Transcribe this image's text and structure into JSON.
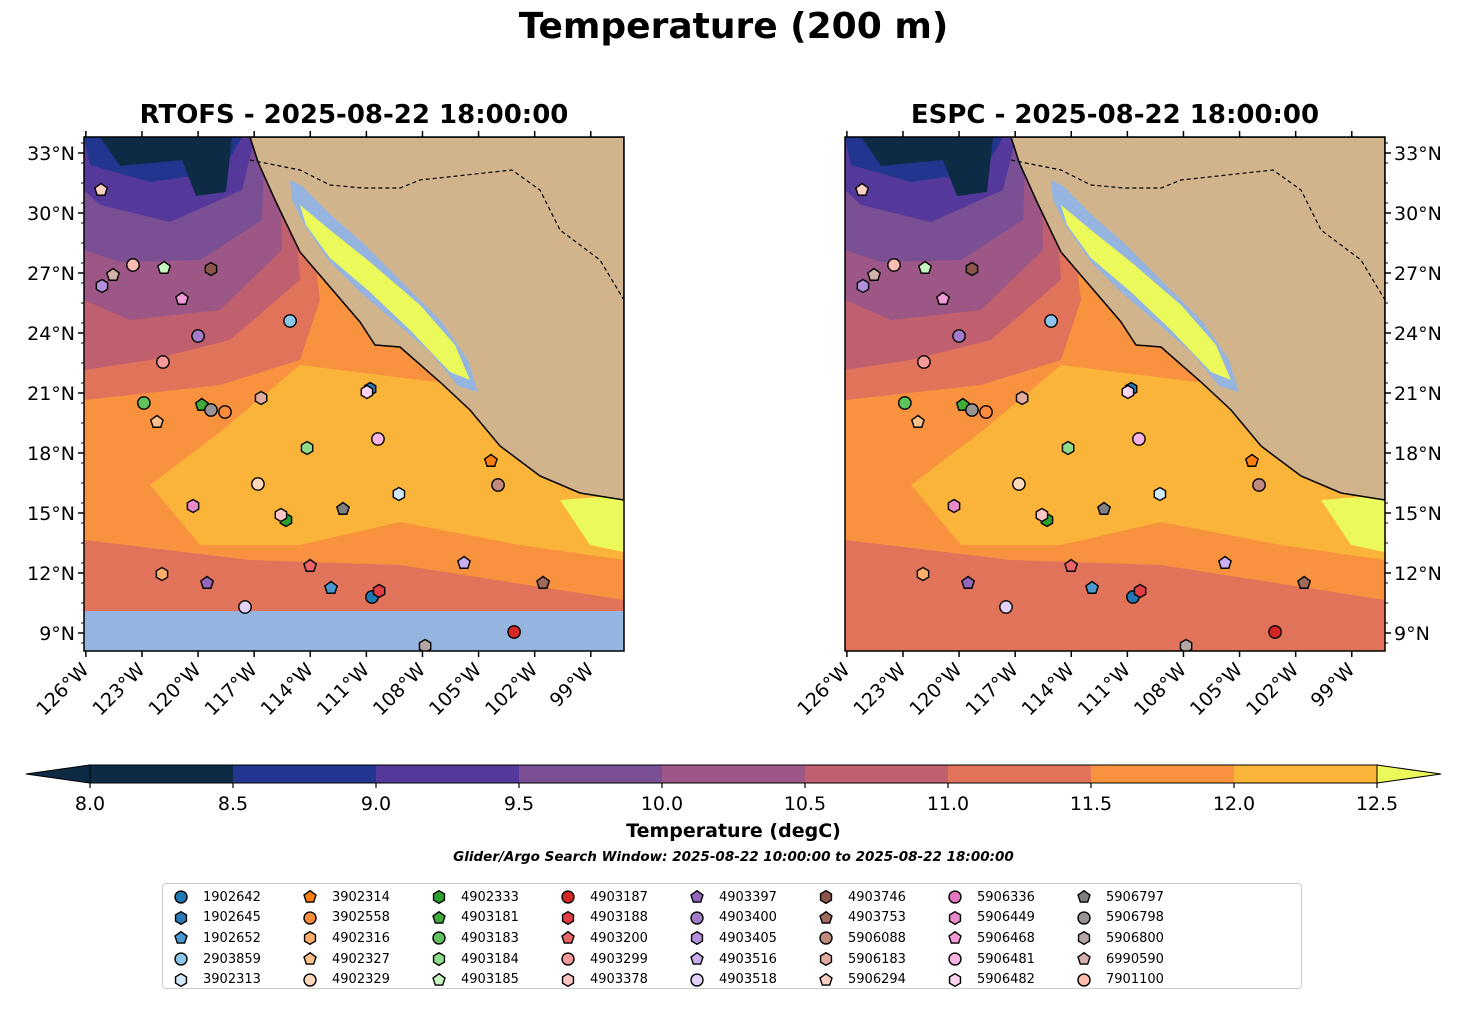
{
  "title": "Temperature (200 m)",
  "chart_data": {
    "type": "map-contour",
    "panels": [
      {
        "title": "RTOFS - 2025-08-22 18:00:00",
        "model": "RTOFS",
        "no_data_south_of_lat": 10.1
      },
      {
        "title": "ESPC - 2025-08-22 18:00:00",
        "model": "ESPC"
      }
    ],
    "lon_range": [
      -126.1,
      -97.0
    ],
    "lat_range": [
      8.1,
      33.8
    ],
    "lon_ticks": [
      -126,
      -123,
      -120,
      -117,
      -114,
      -111,
      -108,
      -105,
      -102,
      -99
    ],
    "lon_tick_labels": [
      "126°W",
      "123°W",
      "120°W",
      "117°W",
      "114°W",
      "111°W",
      "108°W",
      "105°W",
      "102°W",
      "99°W"
    ],
    "lat_ticks": [
      9,
      12,
      15,
      18,
      21,
      24,
      27,
      30,
      33
    ],
    "lat_tick_labels": [
      "9°N",
      "12°N",
      "15°N",
      "18°N",
      "21°N",
      "24°N",
      "27°N",
      "30°N",
      "33°N"
    ],
    "colorbar": {
      "label": "Temperature (degC)",
      "levels": [
        8.0,
        8.5,
        9.0,
        9.5,
        10.0,
        10.5,
        11.0,
        11.5,
        12.0,
        12.5
      ],
      "tick_labels": [
        "8.0",
        "8.5",
        "9.0",
        "9.5",
        "10.0",
        "10.5",
        "11.0",
        "11.5",
        "12.0",
        "12.5"
      ],
      "colors": [
        "#0d2b45",
        "#22368f",
        "#55399a",
        "#7a4f94",
        "#9c5787",
        "#c0606f",
        "#e2735b",
        "#f8923f",
        "#fbb43a"
      ],
      "under_color": "#0d2b45",
      "over_color": "#ecf95a",
      "extend": "both"
    },
    "land_color": "#d2b48c",
    "missing_color": "#95b4e0",
    "search_window": "Glider/Argo Search Window: 2025-08-22 10:00:00 to 2025-08-22 18:00:00",
    "floats": [
      {
        "id": "1902642",
        "shape": "circle",
        "color": "#1f77b4"
      },
      {
        "id": "1902645",
        "shape": "hexagon",
        "color": "#2a7ab9"
      },
      {
        "id": "1902652",
        "shape": "pentagon",
        "color": "#4a98cf"
      },
      {
        "id": "2903859",
        "shape": "circle",
        "color": "#8cc4ea"
      },
      {
        "id": "3902313",
        "shape": "hexagon",
        "color": "#d0e8fa"
      },
      {
        "id": "3902314",
        "shape": "pentagon",
        "color": "#ff7f0e"
      },
      {
        "id": "3902558",
        "shape": "circle",
        "color": "#fd8d3c"
      },
      {
        "id": "4902316",
        "shape": "hexagon",
        "color": "#fdae6b"
      },
      {
        "id": "4902327",
        "shape": "pentagon",
        "color": "#fdc28c"
      },
      {
        "id": "4902329",
        "shape": "circle",
        "color": "#fdd9b9"
      },
      {
        "id": "4902333",
        "shape": "hexagon",
        "color": "#2ca02c"
      },
      {
        "id": "4903181",
        "shape": "pentagon",
        "color": "#41ab3c"
      },
      {
        "id": "4903183",
        "shape": "circle",
        "color": "#5fc35b"
      },
      {
        "id": "4903184",
        "shape": "hexagon",
        "color": "#8fdc8a"
      },
      {
        "id": "4903185",
        "shape": "pentagon",
        "color": "#c7f5c0"
      },
      {
        "id": "4903187",
        "shape": "circle",
        "color": "#d62728"
      },
      {
        "id": "4903188",
        "shape": "hexagon",
        "color": "#e04043"
      },
      {
        "id": "4903200",
        "shape": "pentagon",
        "color": "#eb6566"
      },
      {
        "id": "4903299",
        "shape": "circle",
        "color": "#f49a9a"
      },
      {
        "id": "4903378",
        "shape": "hexagon",
        "color": "#ffc4c4"
      },
      {
        "id": "4903397",
        "shape": "pentagon",
        "color": "#9467bd"
      },
      {
        "id": "4903400",
        "shape": "circle",
        "color": "#a07ccb"
      },
      {
        "id": "4903405",
        "shape": "hexagon",
        "color": "#b290dc"
      },
      {
        "id": "4903516",
        "shape": "pentagon",
        "color": "#c9aef0"
      },
      {
        "id": "4903518",
        "shape": "circle",
        "color": "#e3d2fb"
      },
      {
        "id": "4903746",
        "shape": "hexagon",
        "color": "#8c564b"
      },
      {
        "id": "4903753",
        "shape": "pentagon",
        "color": "#a06a5d"
      },
      {
        "id": "5906088",
        "shape": "circle",
        "color": "#c08a7e"
      },
      {
        "id": "5906183",
        "shape": "hexagon",
        "color": "#e0ab9e"
      },
      {
        "id": "5906294",
        "shape": "pentagon",
        "color": "#fdd0c3"
      },
      {
        "id": "5906336",
        "shape": "circle",
        "color": "#e377c2"
      },
      {
        "id": "5906449",
        "shape": "hexagon",
        "color": "#e98acb"
      },
      {
        "id": "5906468",
        "shape": "pentagon",
        "color": "#f29bd6"
      },
      {
        "id": "5906481",
        "shape": "circle",
        "color": "#f7b4e2"
      },
      {
        "id": "5906482",
        "shape": "hexagon",
        "color": "#fcd4f0"
      },
      {
        "id": "5906797",
        "shape": "pentagon",
        "color": "#7f7f7f"
      },
      {
        "id": "5906798",
        "shape": "circle",
        "color": "#999393"
      },
      {
        "id": "5906800",
        "shape": "hexagon",
        "color": "#b5a5a5"
      },
      {
        "id": "6990590",
        "shape": "pentagon",
        "color": "#d4b0ab"
      },
      {
        "id": "7901100",
        "shape": "circle",
        "color": "#fcbcb0"
      }
    ],
    "positions": [
      {
        "id": "5906294",
        "lon": -125.19,
        "lat": 31.15
      },
      {
        "id": "6990590",
        "lon": -124.55,
        "lat": 26.9
      },
      {
        "id": "4903405",
        "lon": -125.14,
        "lat": 26.35
      },
      {
        "id": "7901100",
        "lon": -123.48,
        "lat": 27.4
      },
      {
        "id": "4903185",
        "lon": -121.82,
        "lat": 27.25
      },
      {
        "id": "4903746",
        "lon": -119.31,
        "lat": 27.2
      },
      {
        "id": "5906468",
        "lon": -120.86,
        "lat": 25.7
      },
      {
        "id": "4903400",
        "lon": -120.0,
        "lat": 23.85
      },
      {
        "id": "2903859",
        "lon": -115.08,
        "lat": 24.6
      },
      {
        "id": "4903299",
        "lon": -121.88,
        "lat": 22.55
      },
      {
        "id": "4903183",
        "lon": -122.9,
        "lat": 20.5
      },
      {
        "id": "4903181",
        "lon": -119.8,
        "lat": 20.4
      },
      {
        "id": "5906798",
        "lon": -119.31,
        "lat": 20.15
      },
      {
        "id": "3902558",
        "lon": -118.56,
        "lat": 20.05
      },
      {
        "id": "4902327",
        "lon": -122.2,
        "lat": 19.55
      },
      {
        "id": "5906183",
        "lon": -116.63,
        "lat": 20.75
      },
      {
        "id": "1902645",
        "lon": -110.8,
        "lat": 21.2
      },
      {
        "id": "5906482",
        "lon": -110.97,
        "lat": 21.05
      },
      {
        "id": "5906481",
        "lon": -110.38,
        "lat": 18.7
      },
      {
        "id": "4903184",
        "lon": -114.17,
        "lat": 18.25
      },
      {
        "id": "3902314",
        "lon": -104.34,
        "lat": 17.6
      },
      {
        "id": "4902329",
        "lon": -116.8,
        "lat": 16.45
      },
      {
        "id": "3902313",
        "lon": -109.26,
        "lat": 15.95
      },
      {
        "id": "5906088",
        "lon": -103.96,
        "lat": 16.4
      },
      {
        "id": "5906449",
        "lon": -120.27,
        "lat": 15.35
      },
      {
        "id": "4902333",
        "lon": -115.3,
        "lat": 14.65
      },
      {
        "id": "4903378",
        "lon": -115.57,
        "lat": 14.9
      },
      {
        "id": "5906797",
        "lon": -112.25,
        "lat": 15.2
      },
      {
        "id": "4902316",
        "lon": -121.93,
        "lat": 11.95
      },
      {
        "id": "4903397",
        "lon": -119.52,
        "lat": 11.5
      },
      {
        "id": "4903518",
        "lon": -117.49,
        "lat": 10.3
      },
      {
        "id": "4903200",
        "lon": -114.01,
        "lat": 12.35
      },
      {
        "id": "1902652",
        "lon": -112.89,
        "lat": 11.25
      },
      {
        "id": "1902642",
        "lon": -110.7,
        "lat": 10.8
      },
      {
        "id": "4903188",
        "lon": -110.32,
        "lat": 11.1
      },
      {
        "id": "4903516",
        "lon": -105.78,
        "lat": 12.5
      },
      {
        "id": "4903753",
        "lon": -101.55,
        "lat": 11.5
      },
      {
        "id": "5906800",
        "lon": -107.86,
        "lat": 8.35
      },
      {
        "id": "4903187",
        "lon": -103.1,
        "lat": 9.05
      }
    ]
  }
}
